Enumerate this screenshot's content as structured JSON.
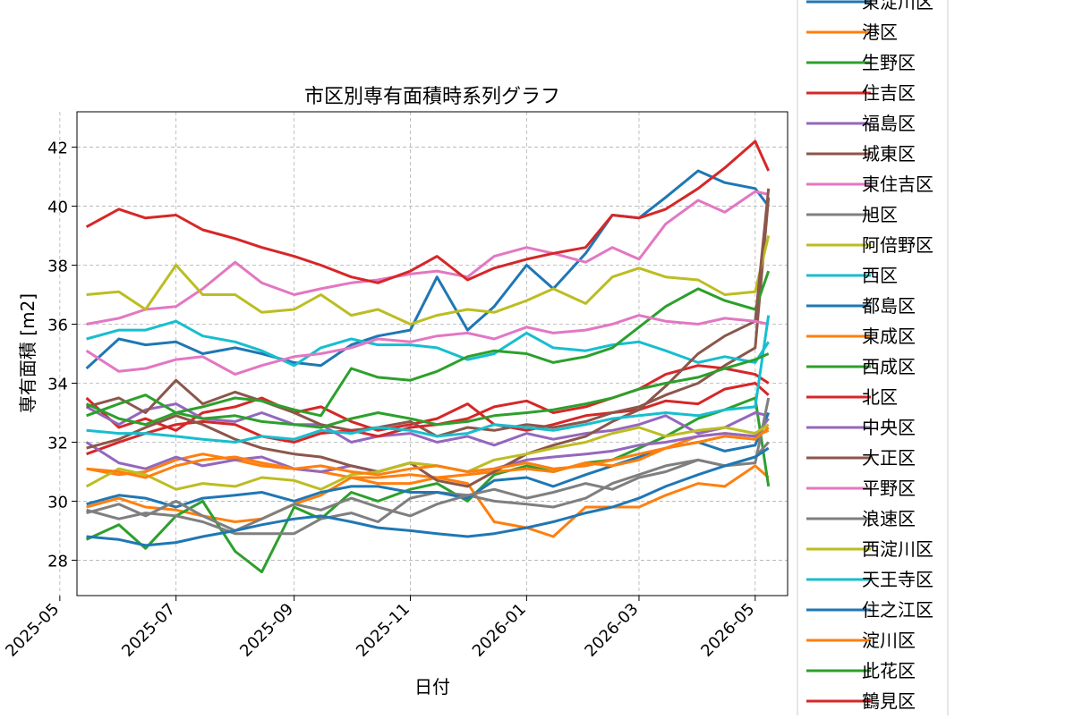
{
  "chart_data": {
    "type": "line",
    "title": "市区別専有面積時系列グラフ",
    "xlabel": "日付",
    "ylabel": "専有面積 [m2]",
    "x_ticks": [
      "2025-05",
      "2025-07",
      "2025-09",
      "2025-11",
      "2026-01",
      "2026-03",
      "2026-05"
    ],
    "y_ticks": [
      28,
      30,
      32,
      34,
      36,
      38,
      40,
      42
    ],
    "ylim": [
      26.8,
      43.2
    ],
    "xlim": [
      "2025-05-10",
      "2026-05-18"
    ],
    "grid": true,
    "legend_position": "right (outside plot, partially cropped at top)",
    "dates": [
      "2025-05-15",
      "2025-06-01",
      "2025-06-15",
      "2025-07-01",
      "2025-07-15",
      "2025-08-01",
      "2025-08-15",
      "2025-09-01",
      "2025-09-15",
      "2025-10-01",
      "2025-10-15",
      "2025-11-01",
      "2025-11-15",
      "2025-12-01",
      "2025-12-15",
      "2026-01-01",
      "2026-01-15",
      "2026-02-01",
      "2026-02-15",
      "2026-03-01",
      "2026-03-15",
      "2026-04-01",
      "2026-04-15",
      "2026-05-01",
      "2026-05-08"
    ],
    "series": [
      {
        "name": "東淀川区",
        "color": "#1f77b4",
        "values": [
          34.5,
          35.5,
          35.3,
          35.4,
          35.0,
          35.2,
          35.0,
          34.7,
          34.6,
          35.3,
          35.6,
          35.8,
          37.6,
          35.8,
          36.6,
          38.0,
          37.2,
          38.4,
          39.7,
          39.6,
          40.3,
          41.2,
          40.8,
          40.6,
          40.0
        ]
      },
      {
        "name": "港区",
        "color": "#ff7f0e",
        "values": [
          29.8,
          30.1,
          29.8,
          29.7,
          29.5,
          29.3,
          29.4,
          29.9,
          30.2,
          30.8,
          30.8,
          30.9,
          30.8,
          30.6,
          29.3,
          29.1,
          28.8,
          29.8,
          29.8,
          29.8,
          30.2,
          30.6,
          30.5,
          31.2,
          30.8
        ]
      },
      {
        "name": "生野区",
        "color": "#2ca02c",
        "values": [
          28.7,
          29.2,
          28.4,
          29.5,
          30.0,
          28.3,
          27.6,
          29.8,
          29.4,
          30.3,
          30.0,
          30.4,
          30.6,
          30.0,
          30.9,
          31.2,
          31.0,
          31.3,
          31.4,
          31.8,
          32.2,
          32.8,
          33.1,
          33.5,
          30.5
        ]
      },
      {
        "name": "住吉区",
        "color": "#d62728",
        "values": [
          33.5,
          32.5,
          32.8,
          32.4,
          33.0,
          33.2,
          33.5,
          33.0,
          33.2,
          32.7,
          32.4,
          32.6,
          32.8,
          33.3,
          32.6,
          32.4,
          32.6,
          32.9,
          33.0,
          33.1,
          33.4,
          33.3,
          33.8,
          34.0,
          33.6
        ]
      },
      {
        "name": "福島区",
        "color": "#9467bd",
        "values": [
          33.2,
          32.6,
          33.1,
          33.3,
          32.8,
          32.7,
          33.0,
          32.6,
          32.6,
          32.0,
          32.2,
          32.3,
          32.0,
          32.2,
          31.9,
          32.3,
          32.1,
          32.3,
          32.4,
          32.6,
          32.9,
          32.3,
          32.5,
          33.0,
          32.9
        ]
      },
      {
        "name": "城東区",
        "color": "#8c564b",
        "values": [
          33.2,
          33.5,
          33.0,
          34.1,
          33.3,
          33.7,
          33.4,
          33.0,
          32.6,
          32.4,
          32.5,
          32.7,
          32.2,
          32.5,
          32.4,
          32.6,
          32.5,
          32.7,
          33.0,
          33.2,
          33.6,
          34.0,
          34.6,
          35.2,
          40.3
        ]
      },
      {
        "name": "東住吉区",
        "color": "#e377c2",
        "values": [
          36.0,
          36.2,
          36.5,
          36.6,
          37.2,
          38.1,
          37.4,
          37.0,
          37.2,
          37.4,
          37.5,
          37.7,
          37.8,
          37.6,
          38.3,
          38.6,
          38.4,
          38.1,
          38.6,
          38.2,
          39.4,
          40.2,
          39.8,
          40.5,
          40.4
        ]
      },
      {
        "name": "旭区",
        "color": "#7f7f7f",
        "values": [
          29.7,
          29.4,
          29.6,
          29.5,
          29.3,
          28.9,
          28.9,
          28.9,
          29.4,
          29.6,
          29.3,
          30.1,
          30.3,
          30.2,
          30.0,
          29.9,
          29.8,
          30.1,
          30.6,
          30.9,
          31.2,
          31.4,
          31.2,
          31.5,
          32.0
        ]
      },
      {
        "name": "阿倍野区",
        "color": "#bcbd22",
        "values": [
          37.0,
          37.1,
          36.5,
          38.0,
          37.0,
          37.0,
          36.4,
          36.5,
          37.0,
          36.3,
          36.5,
          36.0,
          36.3,
          36.5,
          36.4,
          36.8,
          37.2,
          36.7,
          37.6,
          37.9,
          37.6,
          37.5,
          37.0,
          37.1,
          39.0
        ]
      },
      {
        "name": "西区",
        "color": "#17becf",
        "values": [
          35.5,
          35.8,
          35.8,
          36.1,
          35.6,
          35.4,
          35.1,
          34.6,
          35.2,
          35.5,
          35.3,
          35.3,
          35.2,
          34.8,
          35.0,
          35.7,
          35.2,
          35.1,
          35.3,
          35.4,
          35.1,
          34.7,
          34.9,
          34.7,
          35.4
        ]
      },
      {
        "name": "都島区",
        "color": "#1f77b4",
        "values": [
          29.9,
          30.2,
          30.1,
          29.8,
          30.1,
          30.2,
          30.3,
          30.0,
          30.3,
          30.5,
          30.5,
          30.3,
          30.3,
          30.1,
          30.7,
          30.8,
          30.5,
          30.9,
          31.2,
          31.5,
          31.8,
          32.0,
          31.7,
          31.9,
          33.0
        ]
      },
      {
        "name": "東成区",
        "color": "#ff7f0e",
        "values": [
          31.1,
          30.9,
          31.0,
          31.4,
          31.6,
          31.4,
          31.2,
          31.1,
          31.0,
          30.8,
          30.6,
          30.6,
          30.8,
          30.9,
          31.0,
          31.1,
          31.0,
          31.3,
          31.2,
          31.4,
          31.8,
          32.2,
          32.3,
          32.2,
          32.4
        ]
      },
      {
        "name": "西成区",
        "color": "#2ca02c",
        "values": [
          32.9,
          33.3,
          33.6,
          33.0,
          33.2,
          33.5,
          33.4,
          33.1,
          32.9,
          34.5,
          34.2,
          34.1,
          34.4,
          34.9,
          35.1,
          35.0,
          34.7,
          34.9,
          35.2,
          35.9,
          36.6,
          37.2,
          36.8,
          36.5,
          37.8
        ]
      },
      {
        "name": "北区",
        "color": "#d62728",
        "values": [
          31.6,
          32.0,
          32.3,
          32.6,
          32.7,
          32.6,
          32.2,
          32.0,
          32.3,
          32.4,
          32.2,
          32.5,
          32.6,
          32.8,
          33.2,
          33.4,
          33.0,
          33.2,
          33.5,
          33.8,
          34.3,
          34.6,
          34.5,
          34.3,
          34.0
        ]
      },
      {
        "name": "中央区",
        "color": "#9467bd",
        "values": [
          32.0,
          31.3,
          31.1,
          31.5,
          31.2,
          31.4,
          31.5,
          31.1,
          31.0,
          31.2,
          31.0,
          31.3,
          31.2,
          31.0,
          31.1,
          31.4,
          31.5,
          31.6,
          31.7,
          31.9,
          32.0,
          32.2,
          32.3,
          32.2,
          32.8
        ]
      },
      {
        "name": "大正区",
        "color": "#8c564b",
        "values": [
          31.8,
          32.1,
          32.5,
          32.9,
          32.6,
          32.1,
          31.8,
          31.6,
          31.5,
          31.2,
          31.0,
          31.3,
          30.7,
          30.5,
          31.0,
          31.6,
          31.9,
          32.2,
          32.7,
          33.1,
          33.9,
          35.0,
          35.6,
          36.1,
          40.6
        ]
      },
      {
        "name": "平野区",
        "color": "#e377c2",
        "values": [
          35.1,
          34.4,
          34.5,
          34.8,
          34.9,
          34.3,
          34.6,
          34.9,
          35.0,
          35.2,
          35.5,
          35.4,
          35.6,
          35.7,
          35.5,
          35.9,
          35.7,
          35.8,
          36.0,
          36.3,
          36.1,
          36.0,
          36.2,
          36.1,
          36.0
        ]
      },
      {
        "name": "浪速区",
        "color": "#7f7f7f",
        "values": [
          29.6,
          29.9,
          29.5,
          30.0,
          29.5,
          29.0,
          29.4,
          29.9,
          29.7,
          30.1,
          29.8,
          29.5,
          29.9,
          30.2,
          30.4,
          30.1,
          30.3,
          30.6,
          30.4,
          30.8,
          31.0,
          31.4,
          31.2,
          31.3,
          33.5
        ]
      },
      {
        "name": "西淀川区",
        "color": "#bcbd22",
        "values": [
          30.5,
          31.1,
          30.9,
          30.4,
          30.6,
          30.5,
          30.8,
          30.7,
          30.4,
          30.9,
          31.0,
          31.3,
          31.2,
          31.0,
          31.4,
          31.6,
          31.8,
          32.0,
          32.3,
          32.5,
          32.2,
          32.4,
          32.5,
          32.3,
          32.6
        ]
      },
      {
        "name": "天王寺区",
        "color": "#17becf",
        "values": [
          32.4,
          32.3,
          32.3,
          32.2,
          32.1,
          32.0,
          32.2,
          32.1,
          32.4,
          32.3,
          32.5,
          32.4,
          32.2,
          32.3,
          32.6,
          32.5,
          32.4,
          32.6,
          32.8,
          32.9,
          33.0,
          32.9,
          33.1,
          33.2,
          36.3
        ]
      },
      {
        "name": "住之江区",
        "color": "#1f77b4",
        "values": [
          28.8,
          28.7,
          28.5,
          28.6,
          28.8,
          29.0,
          29.2,
          29.4,
          29.5,
          29.3,
          29.1,
          29.0,
          28.9,
          28.8,
          28.9,
          29.1,
          29.3,
          29.6,
          29.8,
          30.1,
          30.5,
          30.9,
          31.2,
          31.5,
          31.8
        ]
      },
      {
        "name": "淀川区",
        "color": "#ff7f0e",
        "values": [
          31.1,
          31.0,
          30.8,
          31.2,
          31.4,
          31.5,
          31.3,
          31.1,
          31.2,
          31.0,
          30.9,
          31.1,
          31.2,
          31.0,
          31.1,
          31.3,
          31.1,
          31.2,
          31.4,
          31.6,
          31.8,
          32.0,
          32.2,
          32.1,
          32.5
        ]
      },
      {
        "name": "此花区",
        "color": "#2ca02c",
        "values": [
          33.3,
          32.8,
          32.6,
          33.0,
          32.8,
          32.9,
          32.7,
          32.6,
          32.5,
          32.8,
          33.0,
          32.8,
          32.6,
          32.7,
          32.9,
          33.0,
          33.1,
          33.3,
          33.5,
          33.8,
          34.0,
          34.2,
          34.5,
          34.8,
          35.0
        ]
      },
      {
        "name": "鶴見区",
        "color": "#d62728",
        "values": [
          39.3,
          39.9,
          39.6,
          39.7,
          39.2,
          38.9,
          38.6,
          38.3,
          38.0,
          37.6,
          37.4,
          37.8,
          38.3,
          37.5,
          37.9,
          38.2,
          38.4,
          38.6,
          39.7,
          39.6,
          39.9,
          40.6,
          41.3,
          42.2,
          41.2
        ]
      }
    ]
  }
}
